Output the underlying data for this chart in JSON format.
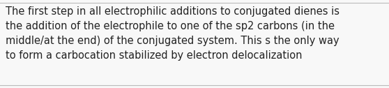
{
  "text": "The first step in all electrophilic additions to conjugated dienes is\nthe addition of the electrophile to one of the sp2 carbons (in the\nmiddle/at the end) of the conjugated system. This s the only way\nto form a carbocation stabilized by electron delocalization",
  "background_color": "#f8f8f8",
  "border_color": "#bbbbbb",
  "text_color": "#222222",
  "font_size": 10.5,
  "fig_width": 5.58,
  "fig_height": 1.26,
  "dpi": 100
}
